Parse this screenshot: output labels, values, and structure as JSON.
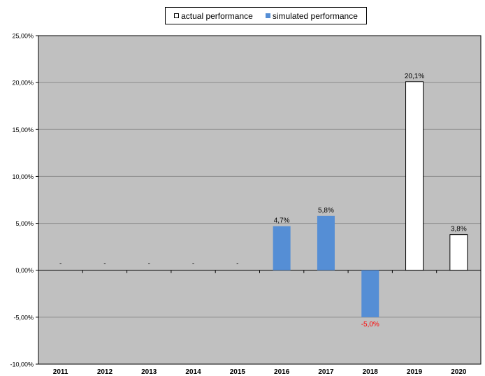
{
  "legend": {
    "actual_label": "actual performance",
    "simulated_label": "simulated performance"
  },
  "chart_data": {
    "type": "bar",
    "categories": [
      "2011",
      "2012",
      "2013",
      "2014",
      "2015",
      "2016",
      "2017",
      "2018",
      "2019",
      "2020"
    ],
    "values": [
      null,
      null,
      null,
      null,
      null,
      4.7,
      5.8,
      -5.0,
      20.1,
      3.8
    ],
    "value_kind": [
      "none",
      "none",
      "none",
      "none",
      "none",
      "simulated",
      "simulated",
      "simulated",
      "actual",
      "actual"
    ],
    "data_labels": [
      "-",
      "-",
      "-",
      "-",
      "-",
      "4,7%",
      "5,8%",
      "-5,0%",
      "20,1%",
      "3,8%"
    ],
    "series": [
      {
        "name": "actual performance",
        "color": "#ffffff"
      },
      {
        "name": "simulated performance",
        "color": "#558ed5"
      }
    ],
    "y_ticks": [
      "25,00%",
      "20,00%",
      "15,00%",
      "10,00%",
      "5,00%",
      "0,00%",
      "-5,00%",
      "-10,00%"
    ],
    "y_tick_values": [
      25,
      20,
      15,
      10,
      5,
      0,
      -5,
      -10
    ],
    "ylim": [
      -10,
      25
    ],
    "unit": "%",
    "grid": true,
    "legend_position": "top-center",
    "colors": {
      "plot_background": "#c0c0c0",
      "gridline": "#8c8c8c",
      "negative_label": "#ff0000",
      "label": "#000000"
    }
  }
}
